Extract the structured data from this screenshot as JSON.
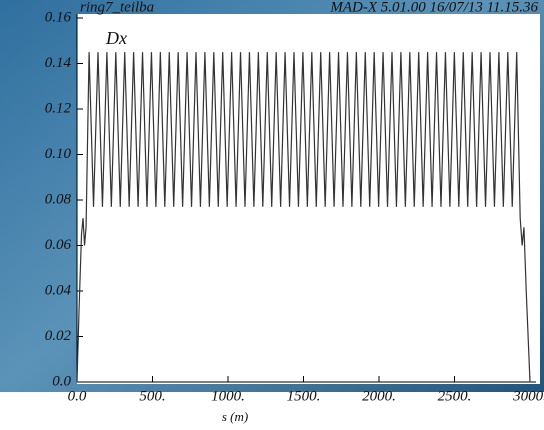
{
  "chart_data": {
    "type": "line",
    "title": "ring7_teilba",
    "subtitle": "MAD-X 5.01.00  16/07/13 11.15.36",
    "xlabel": "s (m)",
    "series": [
      {
        "name": "Dx",
        "color": "#333333",
        "x": [
          0,
          15,
          30,
          40,
          50,
          60,
          80,
          109.5,
          139,
          168.5,
          198,
          227.5,
          257,
          286.5,
          316,
          345.5,
          375,
          404.5,
          434,
          463.5,
          493,
          522.5,
          552,
          581.5,
          611,
          640.5,
          670,
          699.5,
          729,
          758.5,
          788,
          817.5,
          847,
          876.5,
          906,
          935.5,
          965,
          994.5,
          1024,
          1053.5,
          1083,
          1112.5,
          1142,
          1171.5,
          1201,
          1230.5,
          1260,
          1289.5,
          1319,
          1348.5,
          1378,
          1407.5,
          1437,
          1466.5,
          1496,
          1525.5,
          1555,
          1584.5,
          1614,
          1643.5,
          1673,
          1702.5,
          1732,
          1761.5,
          1791,
          1820.5,
          1850,
          1879.5,
          1909,
          1938.5,
          1968,
          1997.5,
          2027,
          2056.5,
          2086,
          2115.5,
          2145,
          2174.5,
          2204,
          2233.5,
          2263,
          2292.5,
          2322,
          2351.5,
          2381,
          2410.5,
          2440,
          2469.5,
          2499,
          2528.5,
          2558,
          2587.5,
          2617,
          2646.5,
          2676,
          2705.5,
          2735,
          2764.5,
          2794,
          2823.5,
          2853,
          2882.5,
          2912,
          2935,
          2948,
          2960,
          2975,
          3000
        ],
        "values": [
          0,
          0.035,
          0.065,
          0.072,
          0.06,
          0.068,
          0.145,
          0.077,
          0.145,
          0.077,
          0.145,
          0.077,
          0.145,
          0.077,
          0.145,
          0.077,
          0.145,
          0.077,
          0.145,
          0.077,
          0.145,
          0.077,
          0.145,
          0.077,
          0.145,
          0.077,
          0.145,
          0.077,
          0.145,
          0.077,
          0.145,
          0.077,
          0.145,
          0.077,
          0.145,
          0.077,
          0.145,
          0.077,
          0.145,
          0.077,
          0.145,
          0.077,
          0.145,
          0.077,
          0.145,
          0.077,
          0.145,
          0.077,
          0.145,
          0.077,
          0.145,
          0.077,
          0.145,
          0.077,
          0.145,
          0.077,
          0.145,
          0.077,
          0.145,
          0.077,
          0.145,
          0.077,
          0.145,
          0.077,
          0.145,
          0.077,
          0.145,
          0.077,
          0.145,
          0.077,
          0.145,
          0.077,
          0.145,
          0.077,
          0.145,
          0.077,
          0.145,
          0.077,
          0.145,
          0.077,
          0.145,
          0.077,
          0.145,
          0.077,
          0.145,
          0.077,
          0.145,
          0.077,
          0.145,
          0.077,
          0.145,
          0.077,
          0.145,
          0.077,
          0.145,
          0.077,
          0.145,
          0.077,
          0.145,
          0.077,
          0.145,
          0.077,
          0.145,
          0.072,
          0.06,
          0.068,
          0.04,
          0
        ]
      }
    ],
    "xlim": [
      0,
      3000
    ],
    "xticks": [
      {
        "value": 0,
        "label": "0.0"
      },
      {
        "value": 500,
        "label": "500."
      },
      {
        "value": 1000,
        "label": "1000."
      },
      {
        "value": 1500,
        "label": "1500."
      },
      {
        "value": 2000,
        "label": "2000."
      },
      {
        "value": 2500,
        "label": "2500."
      },
      {
        "value": 3000,
        "label": "3000."
      }
    ],
    "ylim": [
      0,
      0.16
    ],
    "yticks": [
      {
        "value": 0,
        "label": "0.0"
      },
      0.02,
      0.04,
      0.06,
      0.08,
      {
        "value": 0.1,
        "label": "0.10"
      },
      0.12,
      0.14,
      0.16
    ]
  }
}
